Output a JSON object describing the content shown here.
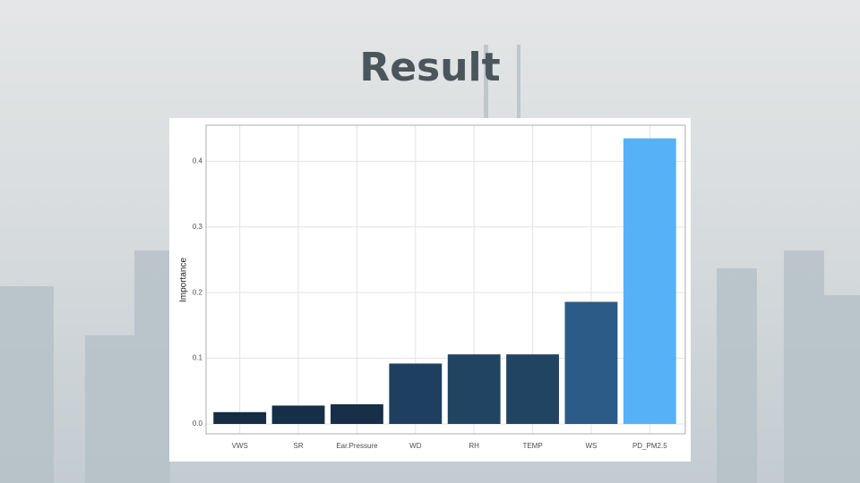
{
  "title": "Result",
  "chart_data": {
    "type": "bar",
    "categories": [
      "VWS",
      "SR",
      "Ear.Pressure",
      "WD",
      "RH",
      "TEMP",
      "WS",
      "PD_PM2.5"
    ],
    "values": [
      0.018,
      0.028,
      0.03,
      0.092,
      0.106,
      0.106,
      0.186,
      0.435
    ],
    "colors": [
      "#142c44",
      "#162f48",
      "#172f49",
      "#1e3f5f",
      "#214463",
      "#214463",
      "#2b5b86",
      "#56b1f7"
    ],
    "y_label": "Importance",
    "ylim": [
      -0.015,
      0.455
    ],
    "yticks": [
      {
        "value": 0,
        "label": "0.0"
      },
      0.1,
      0.2,
      0.3,
      0.4
    ],
    "grid": true
  }
}
